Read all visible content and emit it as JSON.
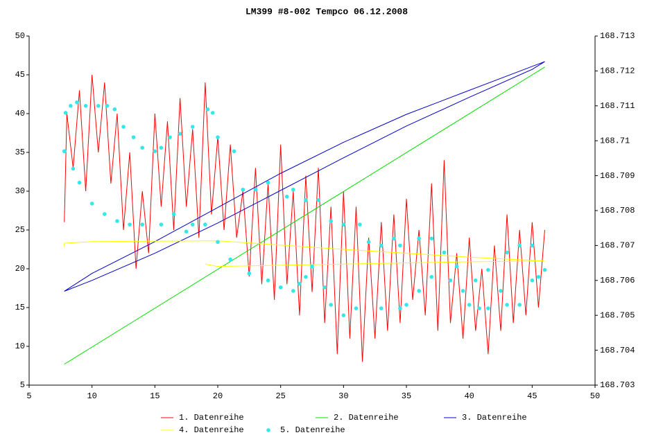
{
  "chart_data": {
    "type": "line",
    "title": "LM399 #8-002 Tempco 06.12.2008",
    "xlim": [
      5,
      50
    ],
    "xticks": [
      5,
      10,
      15,
      20,
      25,
      30,
      35,
      40,
      45,
      50
    ],
    "ylim": [
      5,
      50
    ],
    "yticks": [
      5,
      10,
      15,
      20,
      25,
      30,
      35,
      40,
      45,
      50
    ],
    "y2lim": [
      168.703,
      168.713
    ],
    "y2ticks": [
      168.703,
      168.704,
      168.705,
      168.706,
      168.707,
      168.708,
      168.709,
      168.71,
      168.711,
      168.712,
      168.713
    ],
    "series": [
      {
        "name": "1. Datenreihe",
        "color": "#ff0000",
        "style": "line",
        "x": [
          7.8,
          8,
          8.5,
          9,
          9.5,
          10,
          10.5,
          11,
          11.5,
          12,
          12.5,
          13,
          13.5,
          14,
          14.5,
          15,
          15.5,
          16,
          16.5,
          17,
          17.5,
          18,
          18.5,
          19,
          19.5,
          20,
          20.5,
          21,
          21.5,
          22,
          22.5,
          23,
          23.5,
          24,
          24.5,
          25,
          25.5,
          26,
          26.5,
          27,
          27.5,
          28,
          28.5,
          29,
          29.5,
          30,
          30.5,
          31,
          31.5,
          32,
          32.5,
          33,
          33.5,
          34,
          34.5,
          35,
          35.5,
          36,
          36.5,
          37,
          37.5,
          38,
          38.5,
          39,
          39.5,
          40,
          40.5,
          41,
          41.5,
          42,
          42.5,
          43,
          43.5,
          44,
          44.5,
          45,
          45.5,
          46
        ],
        "values": [
          26,
          40,
          33,
          43,
          30,
          45,
          35,
          44,
          31,
          40,
          25,
          35,
          20,
          30,
          22,
          40,
          28,
          39,
          25,
          42,
          28,
          38,
          24,
          44,
          27,
          37,
          25,
          36,
          24,
          30,
          19,
          33,
          18,
          31,
          16,
          36,
          18,
          30,
          14,
          32,
          17,
          33,
          13,
          28,
          9,
          30,
          11,
          28,
          8,
          24,
          11,
          26,
          12,
          27,
          13,
          29,
          16,
          25,
          14,
          31,
          12,
          34,
          13,
          22,
          11,
          24,
          12,
          20,
          9,
          23,
          12,
          27,
          13,
          25,
          14,
          26,
          15,
          25
        ]
      },
      {
        "name": "2. Datenreihe",
        "color": "#00dd00",
        "style": "line",
        "x": [
          7.8,
          46
        ],
        "values": [
          7.7,
          46
        ]
      },
      {
        "name": "3. Datenreihe",
        "color": "#0000cc",
        "style": "line",
        "x": [
          7.8,
          10,
          15,
          20,
          25,
          30,
          35,
          40,
          46,
          45,
          40,
          35,
          30,
          25,
          20,
          15,
          10,
          7.8
        ],
        "values": [
          17.1,
          19.4,
          23.5,
          27.9,
          32.3,
          36.3,
          39.9,
          43,
          46.7,
          45.7,
          42.1,
          38.4,
          34.3,
          30.1,
          25.9,
          22,
          18.5,
          17.1
        ]
      },
      {
        "name": "4. Datenreihe",
        "color": "#ffff00",
        "style": "line",
        "x": [
          7.8,
          7.8,
          10,
          20,
          30,
          40,
          46,
          40,
          30,
          20,
          19
        ],
        "values": [
          22.8,
          23.3,
          23.5,
          23.6,
          22.5,
          21.5,
          21,
          20.9,
          20.6,
          20.3,
          20.6
        ]
      },
      {
        "name": "5. Datenreihe",
        "color": "#33e8e8",
        "style": "dots",
        "axis": "y2",
        "x": [
          7.8,
          7.9,
          8.3,
          8.8,
          9.5,
          10.5,
          11.2,
          11.8,
          12.5,
          13.3,
          14,
          15,
          15.5,
          16.2,
          17,
          18,
          19.2,
          19.6,
          20,
          21.3,
          22,
          23,
          24,
          25.5,
          26,
          27,
          28,
          29,
          30,
          31.3,
          32,
          33,
          34,
          34.5,
          36,
          37,
          38,
          39,
          40.5,
          41.5,
          43,
          44,
          45,
          46,
          45.5,
          45,
          44,
          43,
          42.5,
          41.5,
          40.8,
          40,
          39.5,
          38.5,
          37,
          36,
          35,
          34.5,
          33,
          31,
          30,
          29,
          28.5,
          27.5,
          27,
          26.5,
          26,
          25,
          24,
          22.5,
          21,
          20,
          19,
          18,
          17.5,
          16.5,
          15.5,
          14,
          13,
          12,
          11,
          10,
          9,
          8.5,
          7.8
        ],
        "values": [
          168.7097,
          168.7108,
          168.711,
          168.7111,
          168.711,
          168.711,
          168.711,
          168.7109,
          168.7104,
          168.7101,
          168.7098,
          168.7097,
          168.7098,
          168.7101,
          168.7102,
          168.7104,
          168.7109,
          168.7108,
          168.7101,
          168.7097,
          168.7086,
          168.7086,
          168.7088,
          168.7084,
          168.7086,
          168.7083,
          168.7083,
          168.7077,
          168.7076,
          168.7076,
          168.7071,
          168.707,
          168.7072,
          168.707,
          168.7072,
          168.7072,
          168.7068,
          168.7064,
          168.706,
          168.7063,
          168.7068,
          168.707,
          168.707,
          168.7063,
          168.7061,
          168.706,
          168.7053,
          168.7053,
          168.7057,
          168.7052,
          168.7052,
          168.7053,
          168.7057,
          168.706,
          168.7061,
          168.7057,
          168.7053,
          168.7052,
          168.7052,
          168.7052,
          168.705,
          168.7053,
          168.7058,
          168.7064,
          168.7061,
          168.7059,
          168.7057,
          168.7058,
          168.706,
          168.7062,
          168.7066,
          168.7071,
          168.7076,
          168.7076,
          168.7074,
          168.7079,
          168.7076,
          168.7076,
          168.7076,
          168.7077,
          168.7079,
          168.7082,
          168.7088,
          168.7092,
          168.7097
        ]
      }
    ]
  }
}
